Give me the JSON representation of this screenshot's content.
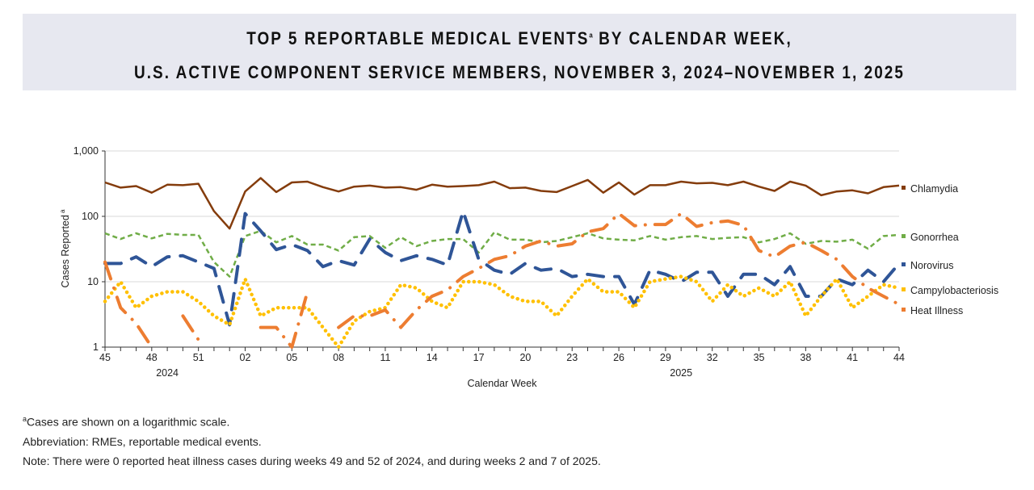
{
  "header": {
    "title_line1": "TOP 5 REPORTABLE MEDICAL EVENTS",
    "title_sup": "a",
    "title_line1_end": " BY CALENDAR WEEK,",
    "title_line2": "U.S. ACTIVE COMPONENT SERVICE MEMBERS, NOVEMBER 3, 2024–NOVEMBER 1, 2025"
  },
  "footnotes": {
    "a_sup": "a",
    "a_text": "Cases are shown on a logarithmic scale.",
    "abbrev": "Abbreviation: RMEs, reportable medical events.",
    "note": "Note: There were 0 reported heat illness cases during weeks 49 and 52 of 2024, and during weeks 2 and 7 of 2025."
  },
  "chart_data": {
    "type": "line",
    "xlabel": "Calendar Week",
    "ylabel": "Cases Reported",
    "ylabel_sup": "a",
    "yscale": "log",
    "ylim": [
      1,
      1000
    ],
    "yticks": [
      "1",
      "10",
      "100",
      "1,000"
    ],
    "grid": true,
    "legend": "right",
    "year_labels": [
      {
        "label": "2024",
        "week_index": 4
      },
      {
        "label": "2025",
        "week_index": 37
      }
    ],
    "x": [
      "45",
      "46",
      "47",
      "48",
      "49",
      "50",
      "51",
      "52",
      "01",
      "02",
      "03",
      "04",
      "05",
      "06",
      "07",
      "08",
      "09",
      "10",
      "11",
      "12",
      "13",
      "14",
      "15",
      "16",
      "17",
      "18",
      "19",
      "20",
      "21",
      "22",
      "23",
      "24",
      "25",
      "26",
      "27",
      "28",
      "29",
      "30",
      "31",
      "32",
      "33",
      "34",
      "35",
      "36",
      "37",
      "38",
      "39",
      "40",
      "41",
      "42",
      "43",
      "44"
    ],
    "xtick_labels": [
      "45",
      "48",
      "51",
      "02",
      "05",
      "08",
      "11",
      "14",
      "17",
      "20",
      "23",
      "26",
      "29",
      "32",
      "35",
      "38",
      "41",
      "44"
    ],
    "series": [
      {
        "name": "Chlamydia",
        "color": "#843c0c",
        "dash": "solid",
        "values": [
          330,
          275,
          290,
          230,
          305,
          300,
          315,
          120,
          65,
          240,
          385,
          235,
          330,
          340,
          280,
          240,
          285,
          295,
          275,
          280,
          255,
          305,
          285,
          290,
          300,
          340,
          270,
          275,
          245,
          235,
          290,
          360,
          230,
          330,
          215,
          300,
          300,
          340,
          320,
          325,
          300,
          340,
          285,
          245,
          340,
          295,
          210,
          240,
          250,
          225,
          280,
          295
        ]
      },
      {
        "name": "Gonorrhea",
        "color": "#70ad47",
        "dash": "dashed",
        "values": [
          55,
          45,
          55,
          46,
          54,
          52,
          52,
          20,
          12,
          50,
          60,
          40,
          50,
          37,
          37,
          30,
          48,
          50,
          33,
          48,
          35,
          42,
          45,
          45,
          28,
          57,
          44,
          44,
          40,
          42,
          48,
          55,
          46,
          44,
          43,
          50,
          44,
          48,
          50,
          45,
          47,
          48,
          40,
          45,
          55,
          38,
          42,
          41,
          44,
          32,
          50,
          52
        ]
      },
      {
        "name": "Norovirus",
        "color": "#2f5597",
        "dash": "long-dash",
        "values": [
          19,
          19,
          24,
          17,
          24,
          25,
          20,
          16,
          2.2,
          110,
          60,
          31,
          37,
          30,
          17,
          21,
          18,
          45,
          28,
          21,
          25,
          22,
          18,
          120,
          22,
          15,
          13,
          19,
          15,
          16,
          12,
          13,
          12,
          12,
          4.5,
          15,
          13,
          10,
          14,
          14,
          6,
          13,
          13,
          9,
          17,
          6,
          6,
          11,
          9,
          15,
          10,
          19
        ]
      },
      {
        "name": "Campylobacteriosis",
        "color": "#ffc000",
        "dash": "dotted",
        "values": [
          5,
          10,
          4,
          6,
          7,
          7,
          5,
          3,
          2.2,
          11,
          3,
          4,
          4,
          4,
          2,
          1,
          2.5,
          3.5,
          4,
          9,
          8,
          5,
          4,
          10,
          10,
          9,
          6,
          5,
          5,
          3,
          6,
          11,
          7,
          7,
          4,
          10,
          11,
          12,
          10,
          5,
          9,
          6,
          8,
          6,
          10,
          3,
          6,
          11,
          4,
          6,
          9,
          8
        ]
      },
      {
        "name": "Heat Illness",
        "color": "#ed7d31",
        "dash": "dash-dot",
        "values": [
          20,
          4,
          2.3,
          1,
          null,
          3,
          1.3,
          null,
          1,
          null,
          2,
          2,
          1,
          7,
          null,
          2,
          3,
          3,
          3.7,
          2,
          3.7,
          6,
          7.5,
          12,
          16,
          22,
          25,
          35,
          42,
          35,
          38,
          58,
          65,
          110,
          72,
          75,
          75,
          110,
          70,
          80,
          85,
          73,
          30,
          24,
          35,
          40,
          30,
          22,
          12,
          8,
          6,
          4.5
        ]
      }
    ]
  }
}
